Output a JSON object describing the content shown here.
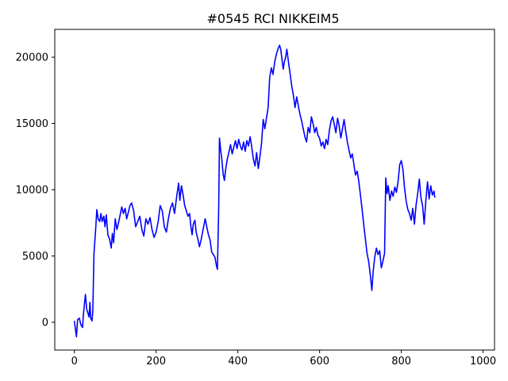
{
  "chart_data": {
    "type": "line",
    "title": "#0545 RCI NIKKEIM5",
    "xlabel": "",
    "ylabel": "",
    "xlim": [
      -48,
      1028
    ],
    "ylim": [
      -2100,
      22100
    ],
    "xticks": [
      0,
      200,
      400,
      600,
      800,
      1000
    ],
    "yticks": [
      0,
      5000,
      10000,
      15000,
      20000
    ],
    "grid": false,
    "series": [
      {
        "color": "#0000ff",
        "points": [
          [
            0,
            100
          ],
          [
            5,
            -1100
          ],
          [
            8,
            200
          ],
          [
            12,
            300
          ],
          [
            16,
            -200
          ],
          [
            20,
            -400
          ],
          [
            22,
            500
          ],
          [
            24,
            1200
          ],
          [
            27,
            2100
          ],
          [
            30,
            1000
          ],
          [
            33,
            700
          ],
          [
            36,
            400
          ],
          [
            38,
            1500
          ],
          [
            40,
            300
          ],
          [
            43,
            100
          ],
          [
            45,
            800
          ],
          [
            48,
            5200
          ],
          [
            52,
            7000
          ],
          [
            55,
            8500
          ],
          [
            58,
            7800
          ],
          [
            62,
            7600
          ],
          [
            65,
            8200
          ],
          [
            68,
            7600
          ],
          [
            72,
            8000
          ],
          [
            75,
            7200
          ],
          [
            78,
            8100
          ],
          [
            82,
            6600
          ],
          [
            86,
            6300
          ],
          [
            90,
            5600
          ],
          [
            93,
            6700
          ],
          [
            96,
            6000
          ],
          [
            100,
            7800
          ],
          [
            104,
            7000
          ],
          [
            108,
            7500
          ],
          [
            112,
            8100
          ],
          [
            116,
            8700
          ],
          [
            120,
            8200
          ],
          [
            124,
            8600
          ],
          [
            128,
            7800
          ],
          [
            132,
            8300
          ],
          [
            136,
            8800
          ],
          [
            140,
            9000
          ],
          [
            145,
            8400
          ],
          [
            150,
            7200
          ],
          [
            155,
            7600
          ],
          [
            160,
            8000
          ],
          [
            165,
            7000
          ],
          [
            170,
            6500
          ],
          [
            175,
            7800
          ],
          [
            180,
            7400
          ],
          [
            185,
            7900
          ],
          [
            190,
            7000
          ],
          [
            195,
            6400
          ],
          [
            200,
            6800
          ],
          [
            205,
            7600
          ],
          [
            210,
            8800
          ],
          [
            215,
            8400
          ],
          [
            220,
            7200
          ],
          [
            225,
            6800
          ],
          [
            230,
            7800
          ],
          [
            235,
            8600
          ],
          [
            240,
            9000
          ],
          [
            245,
            8200
          ],
          [
            250,
            9400
          ],
          [
            255,
            10500
          ],
          [
            258,
            9200
          ],
          [
            262,
            10300
          ],
          [
            266,
            9600
          ],
          [
            270,
            8800
          ],
          [
            274,
            8400
          ],
          [
            278,
            8000
          ],
          [
            282,
            8200
          ],
          [
            285,
            7200
          ],
          [
            288,
            6600
          ],
          [
            291,
            7400
          ],
          [
            295,
            7700
          ],
          [
            298,
            6800
          ],
          [
            302,
            6300
          ],
          [
            306,
            5700
          ],
          [
            310,
            6200
          ],
          [
            315,
            7000
          ],
          [
            320,
            7800
          ],
          [
            324,
            7200
          ],
          [
            328,
            6600
          ],
          [
            332,
            6200
          ],
          [
            336,
            5300
          ],
          [
            340,
            5100
          ],
          [
            344,
            4900
          ],
          [
            348,
            4200
          ],
          [
            350,
            4000
          ],
          [
            353,
            8500
          ],
          [
            355,
            13900
          ],
          [
            358,
            13000
          ],
          [
            361,
            12200
          ],
          [
            364,
            11200
          ],
          [
            367,
            10700
          ],
          [
            370,
            11500
          ],
          [
            374,
            12300
          ],
          [
            378,
            12800
          ],
          [
            382,
            13400
          ],
          [
            386,
            12700
          ],
          [
            390,
            13200
          ],
          [
            394,
            13700
          ],
          [
            398,
            13100
          ],
          [
            402,
            13800
          ],
          [
            406,
            13300
          ],
          [
            410,
            13000
          ],
          [
            414,
            13600
          ],
          [
            418,
            12900
          ],
          [
            422,
            13700
          ],
          [
            426,
            13300
          ],
          [
            430,
            14000
          ],
          [
            434,
            13200
          ],
          [
            438,
            12300
          ],
          [
            442,
            11800
          ],
          [
            446,
            12800
          ],
          [
            450,
            11600
          ],
          [
            454,
            12500
          ],
          [
            458,
            13500
          ],
          [
            462,
            15300
          ],
          [
            466,
            14600
          ],
          [
            470,
            15400
          ],
          [
            474,
            16200
          ],
          [
            478,
            18500
          ],
          [
            482,
            19200
          ],
          [
            486,
            18700
          ],
          [
            490,
            19600
          ],
          [
            494,
            20200
          ],
          [
            498,
            20600
          ],
          [
            502,
            20900
          ],
          [
            505,
            20600
          ],
          [
            508,
            19800
          ],
          [
            511,
            19100
          ],
          [
            514,
            19700
          ],
          [
            517,
            20000
          ],
          [
            520,
            20600
          ],
          [
            524,
            19600
          ],
          [
            528,
            18700
          ],
          [
            532,
            17800
          ],
          [
            536,
            17100
          ],
          [
            540,
            16200
          ],
          [
            544,
            17000
          ],
          [
            548,
            16300
          ],
          [
            552,
            15700
          ],
          [
            556,
            15200
          ],
          [
            560,
            14600
          ],
          [
            564,
            14000
          ],
          [
            568,
            13600
          ],
          [
            572,
            14700
          ],
          [
            576,
            14300
          ],
          [
            580,
            15500
          ],
          [
            584,
            15000
          ],
          [
            588,
            14300
          ],
          [
            592,
            14700
          ],
          [
            596,
            14100
          ],
          [
            600,
            13900
          ],
          [
            604,
            13300
          ],
          [
            608,
            13600
          ],
          [
            612,
            13100
          ],
          [
            616,
            13800
          ],
          [
            620,
            13400
          ],
          [
            624,
            14500
          ],
          [
            628,
            15200
          ],
          [
            632,
            15500
          ],
          [
            636,
            14900
          ],
          [
            640,
            14300
          ],
          [
            644,
            15400
          ],
          [
            648,
            14800
          ],
          [
            652,
            13900
          ],
          [
            656,
            14600
          ],
          [
            660,
            15300
          ],
          [
            664,
            14400
          ],
          [
            668,
            13600
          ],
          [
            672,
            13000
          ],
          [
            676,
            12400
          ],
          [
            680,
            12700
          ],
          [
            684,
            11900
          ],
          [
            688,
            11100
          ],
          [
            692,
            11400
          ],
          [
            696,
            10600
          ],
          [
            700,
            9600
          ],
          [
            704,
            8500
          ],
          [
            708,
            7400
          ],
          [
            712,
            6300
          ],
          [
            716,
            5200
          ],
          [
            720,
            4600
          ],
          [
            724,
            3600
          ],
          [
            728,
            2400
          ],
          [
            731,
            3800
          ],
          [
            735,
            4900
          ],
          [
            739,
            5600
          ],
          [
            743,
            5100
          ],
          [
            747,
            5400
          ],
          [
            751,
            4100
          ],
          [
            755,
            4600
          ],
          [
            759,
            5200
          ],
          [
            762,
            10900
          ],
          [
            765,
            9700
          ],
          [
            768,
            10300
          ],
          [
            772,
            9200
          ],
          [
            776,
            9900
          ],
          [
            780,
            9500
          ],
          [
            784,
            10200
          ],
          [
            788,
            9800
          ],
          [
            792,
            10600
          ],
          [
            796,
            11900
          ],
          [
            800,
            12200
          ],
          [
            804,
            11500
          ],
          [
            808,
            10100
          ],
          [
            812,
            9100
          ],
          [
            816,
            8500
          ],
          [
            820,
            8200
          ],
          [
            824,
            7700
          ],
          [
            828,
            8600
          ],
          [
            832,
            7400
          ],
          [
            836,
            8800
          ],
          [
            840,
            9700
          ],
          [
            844,
            10800
          ],
          [
            848,
            9400
          ],
          [
            852,
            8800
          ],
          [
            856,
            7400
          ],
          [
            860,
            9200
          ],
          [
            864,
            10600
          ],
          [
            868,
            9300
          ],
          [
            872,
            10300
          ],
          [
            876,
            9600
          ],
          [
            880,
            9900
          ],
          [
            882,
            9400
          ]
        ]
      }
    ]
  }
}
